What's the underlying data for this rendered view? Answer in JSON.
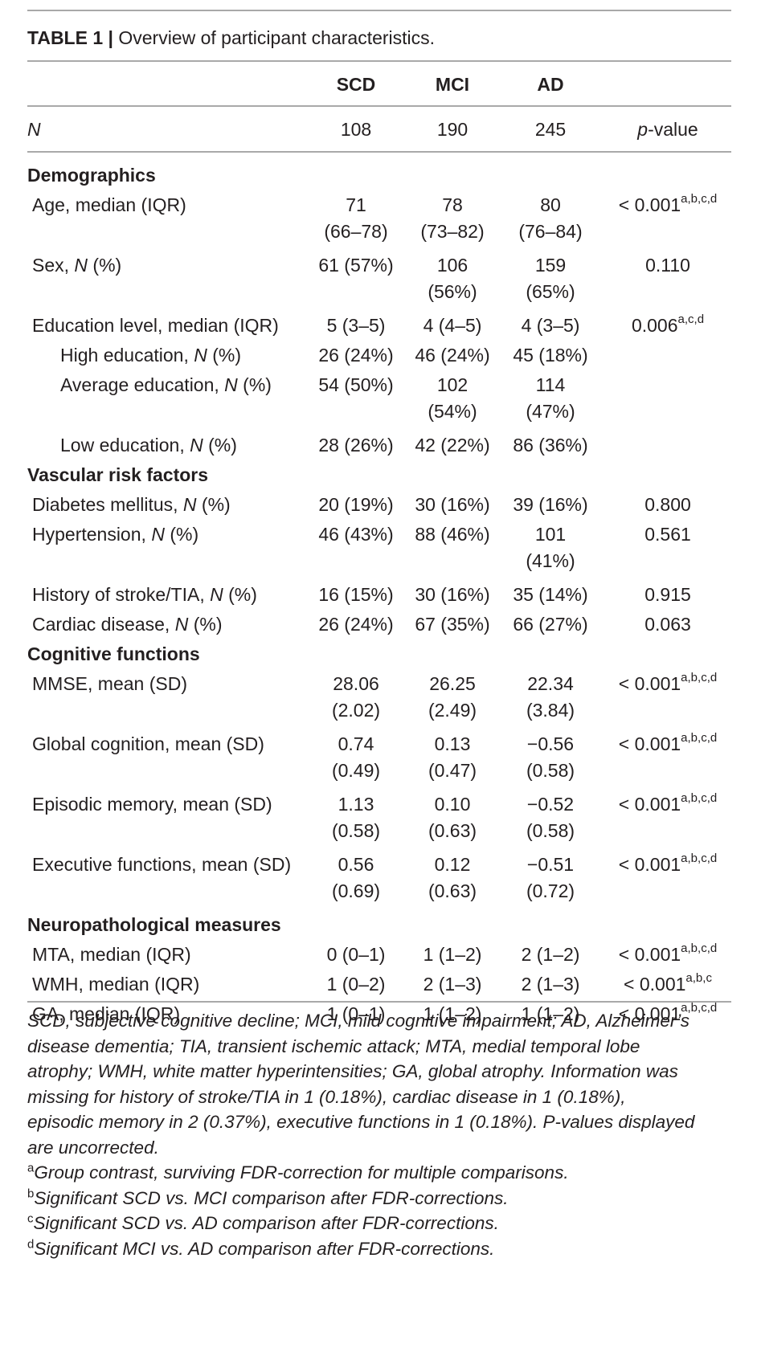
{
  "caption": {
    "label": "TABLE 1 |",
    "title": " Overview of participant characteristics."
  },
  "header": {
    "col1": "SCD",
    "col2": "MCI",
    "col3": "AD"
  },
  "n_row": {
    "label": "N",
    "col1": "108",
    "col2": "190",
    "col3": "245",
    "pvalue_p": "p",
    "pvalue_rest": "-value"
  },
  "sections": [
    {
      "title": "Demographics",
      "rows": [
        {
          "label": "Age, median (IQR)",
          "col1": [
            "71",
            "(66–78)"
          ],
          "col2": [
            "78",
            "(73–82)"
          ],
          "col3": [
            "80",
            "(76–84)"
          ],
          "pvalue": "< 0.001",
          "sup": "a,b,c,d"
        },
        {
          "label": "Sex, N (%)",
          "col1": [
            "61 (57%)"
          ],
          "col2": [
            "106",
            "(56%)"
          ],
          "col3": [
            "159",
            "(65%)"
          ],
          "pvalue": "0.110",
          "sup": ""
        },
        {
          "label": "Education level, median (IQR)",
          "col1": [
            "5 (3–5)"
          ],
          "col2": [
            "4 (4–5)"
          ],
          "col3": [
            "4 (3–5)"
          ],
          "pvalue": "0.006",
          "sup": "a,c,d"
        },
        {
          "label": "High education, N (%)",
          "col1": [
            "26 (24%)"
          ],
          "col2": [
            "46 (24%)"
          ],
          "col3": [
            "45 (18%)"
          ],
          "pvalue": "",
          "sup": ""
        },
        {
          "label": "Average education, N (%)",
          "col1": [
            "54 (50%)"
          ],
          "col2": [
            "102",
            "(54%)"
          ],
          "col3": [
            "114",
            "(47%)"
          ],
          "pvalue": "",
          "sup": ""
        },
        {
          "label": "Low education, N (%)",
          "col1": [
            "28 (26%)"
          ],
          "col2": [
            "42 (22%)"
          ],
          "col3": [
            "86 (36%)"
          ],
          "pvalue": "",
          "sup": ""
        }
      ]
    },
    {
      "title": "Vascular risk factors",
      "rows": [
        {
          "label": "Diabetes mellitus, N (%)",
          "col1": [
            "20 (19%)"
          ],
          "col2": [
            "30 (16%)"
          ],
          "col3": [
            "39 (16%)"
          ],
          "pvalue": "0.800",
          "sup": ""
        },
        {
          "label": "Hypertension, N (%)",
          "col1": [
            "46 (43%)"
          ],
          "col2": [
            "88 (46%)"
          ],
          "col3": [
            "101",
            "(41%)"
          ],
          "pvalue": "0.561",
          "sup": ""
        },
        {
          "label": "History of stroke/TIA, N (%)",
          "col1": [
            "16 (15%)"
          ],
          "col2": [
            "30 (16%)"
          ],
          "col3": [
            "35 (14%)"
          ],
          "pvalue": "0.915",
          "sup": ""
        },
        {
          "label": "Cardiac disease, N (%)",
          "col1": [
            "26 (24%)"
          ],
          "col2": [
            "67 (35%)"
          ],
          "col3": [
            "66 (27%)"
          ],
          "pvalue": "0.063",
          "sup": ""
        }
      ]
    },
    {
      "title": "Cognitive functions",
      "rows": [
        {
          "label": "MMSE, mean (SD)",
          "col1": [
            "28.06",
            "(2.02)"
          ],
          "col2": [
            "26.25",
            "(2.49)"
          ],
          "col3": [
            "22.34",
            "(3.84)"
          ],
          "pvalue": "< 0.001",
          "sup": "a,b,c,d"
        },
        {
          "label": "Global cognition, mean (SD)",
          "col1": [
            "0.74",
            "(0.49)"
          ],
          "col2": [
            "0.13",
            "(0.47)"
          ],
          "col3": [
            "−0.56",
            "(0.58)"
          ],
          "pvalue": "< 0.001",
          "sup": "a,b,c,d"
        },
        {
          "label": "Episodic memory, mean (SD)",
          "col1": [
            "1.13",
            "(0.58)"
          ],
          "col2": [
            "0.10",
            "(0.63)"
          ],
          "col3": [
            "−0.52",
            "(0.58)"
          ],
          "pvalue": "< 0.001",
          "sup": "a,b,c,d"
        },
        {
          "label": "Executive functions, mean (SD)",
          "col1": [
            "0.56",
            "(0.69)"
          ],
          "col2": [
            "0.12",
            "(0.63)"
          ],
          "col3": [
            "−0.51",
            "(0.72)"
          ],
          "pvalue": "< 0.001",
          "sup": "a,b,c,d"
        }
      ]
    },
    {
      "title": "Neuropathological measures",
      "rows": [
        {
          "label": "MTA, median (IQR)",
          "col1": [
            "0 (0–1)"
          ],
          "col2": [
            "1 (1–2)"
          ],
          "col3": [
            "2 (1–2)"
          ],
          "pvalue": "< 0.001",
          "sup": "a,b,c,d"
        },
        {
          "label": "WMH, median (IQR)",
          "col1": [
            "1 (0–2)"
          ],
          "col2": [
            "2 (1–3)"
          ],
          "col3": [
            "2 (1–3)"
          ],
          "pvalue": "< 0.001",
          "sup": "a,b,c"
        },
        {
          "label": "GA, median (IQR)",
          "col1": [
            "1 (0–1)"
          ],
          "col2": [
            "1 (1–2)"
          ],
          "col3": [
            "1 (1–2)"
          ],
          "pvalue": "< 0.001",
          "sup": "a,b,c,d"
        }
      ]
    }
  ],
  "notes": {
    "abbrev_1": "SCD, subjective cognitive decline; MCI, mild cognitive impairment; AD, Alzheimer’s",
    "abbrev_2": "disease dementia; TIA, transient ischemic attack; MTA, medial temporal lobe",
    "abbrev_3": "atrophy; WMH, white matter hyperintensities; GA, global atrophy. Information was",
    "abbrev_4": "missing for history of stroke/TIA in 1 (0.18%), cardiac disease in 1 (0.18%),",
    "abbrev_5": "episodic memory in 2 (0.37%), executive functions in 1 (0.18%). P-values displayed",
    "abbrev_6": "are uncorrected.",
    "fn_a_mark": "a",
    "fn_a": "Group contrast, surviving FDR-correction for multiple comparisons.",
    "fn_b_mark": "b",
    "fn_b": "Significant SCD vs. MCI comparison after FDR-corrections.",
    "fn_c_mark": "c",
    "fn_c": "Significant SCD vs. AD comparison after FDR-corrections.",
    "fn_d_mark": "d",
    "fn_d": "Significant MCI vs. AD comparison after FDR-corrections."
  }
}
